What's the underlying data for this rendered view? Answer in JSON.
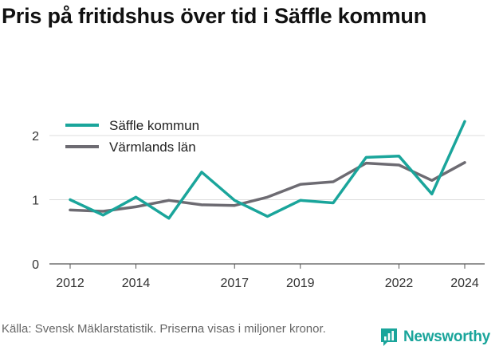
{
  "title": "Pris på fritidshus över tid i Säffle kommun",
  "source": "Källa: Svensk Mäklarstatistik. Priserna visas i miljoner kronor.",
  "brand": {
    "name": "Newsworthy",
    "icon": "newsworthy-logo-icon",
    "color": "#1aa59b"
  },
  "chart_data": {
    "type": "line",
    "title": "Pris på fritidshus över tid i Säffle kommun",
    "xlabel": "",
    "ylabel": "",
    "x": [
      2012,
      2013,
      2014,
      2015,
      2016,
      2017,
      2018,
      2019,
      2020,
      2021,
      2022,
      2023,
      2024
    ],
    "x_tick_labels": [
      "2012",
      "2014",
      "2017",
      "2019",
      "2022",
      "2024"
    ],
    "y_ticks": [
      0,
      1,
      2
    ],
    "ylim": [
      0,
      2.3
    ],
    "grid": true,
    "legend_position": "top-left",
    "series": [
      {
        "name": "Säffle kommun",
        "color": "#1aa59b",
        "values": [
          1.0,
          0.76,
          1.04,
          0.71,
          1.43,
          0.99,
          0.74,
          0.99,
          0.95,
          1.66,
          1.68,
          1.09,
          2.22
        ]
      },
      {
        "name": "Värmlands län",
        "color": "#6d6b72",
        "values": [
          0.84,
          0.82,
          0.89,
          0.99,
          0.92,
          0.91,
          1.04,
          1.24,
          1.28,
          1.57,
          1.54,
          1.3,
          1.58
        ]
      }
    ]
  }
}
